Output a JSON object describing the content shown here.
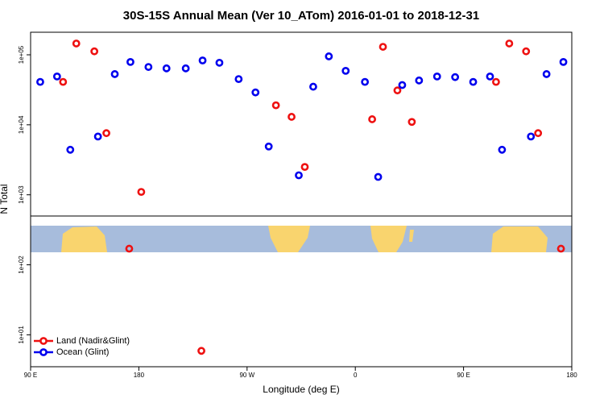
{
  "chart_data": {
    "type": "scatter",
    "title": "30S-15S Annual Mean (Ver 10_ATom)   2016-01-01 to 2018-12-31",
    "xlabel": "Longitude (deg E)",
    "ylabel": "N Total",
    "xlim": [
      90,
      540
    ],
    "xticks": [
      {
        "value": 90,
        "label": "90 E"
      },
      180,
      {
        "value": 270,
        "label": "90 W"
      },
      {
        "value": 360,
        "label": "0"
      },
      {
        "value": 450,
        "label": "90 E"
      },
      {
        "value": 540,
        "label": "180"
      }
    ],
    "ylim": [
      3.5,
      210000
    ],
    "ylog": true,
    "yticks": [
      {
        "value": 10,
        "label": "1e+01"
      },
      {
        "value": 100,
        "label": "1e+02"
      },
      {
        "value": 1000,
        "label": "1e+03"
      },
      {
        "value": 10000,
        "label": "1e+04"
      },
      {
        "value": 100000,
        "label": "1e+05"
      }
    ],
    "legend": "lower left",
    "series": [
      {
        "name": "Land (Nadir&Glint)",
        "color": "#ee1111",
        "x": [
          117,
          128,
          143,
          153,
          182,
          294,
          307,
          318,
          374,
          383,
          395,
          407,
          477,
          488,
          502,
          512,
          172,
          232,
          531
        ],
        "values": [
          41000,
          145000,
          112000,
          7600,
          1100,
          19000,
          13000,
          2500,
          12000,
          130000,
          31000,
          11000,
          41000,
          145000,
          112000,
          7600,
          170,
          5.9,
          170
        ]
      },
      {
        "name": "Ocean (Glint)",
        "color": "#0000ee",
        "x": [
          98,
          112,
          123,
          146,
          160,
          173,
          188,
          203,
          219,
          233,
          247,
          263,
          277,
          288,
          313,
          325,
          338,
          352,
          368,
          379,
          399,
          413,
          428,
          443,
          458,
          472,
          482,
          506,
          519,
          533
        ],
        "values": [
          41000,
          49000,
          4400,
          6800,
          53000,
          79000,
          67000,
          64000,
          64000,
          83000,
          77000,
          45000,
          29000,
          4900,
          1900,
          35000,
          95000,
          59000,
          41000,
          1800,
          37000,
          43000,
          49000,
          48000,
          41000,
          49000,
          4400,
          6800,
          53000,
          79000
        ]
      }
    ]
  }
}
